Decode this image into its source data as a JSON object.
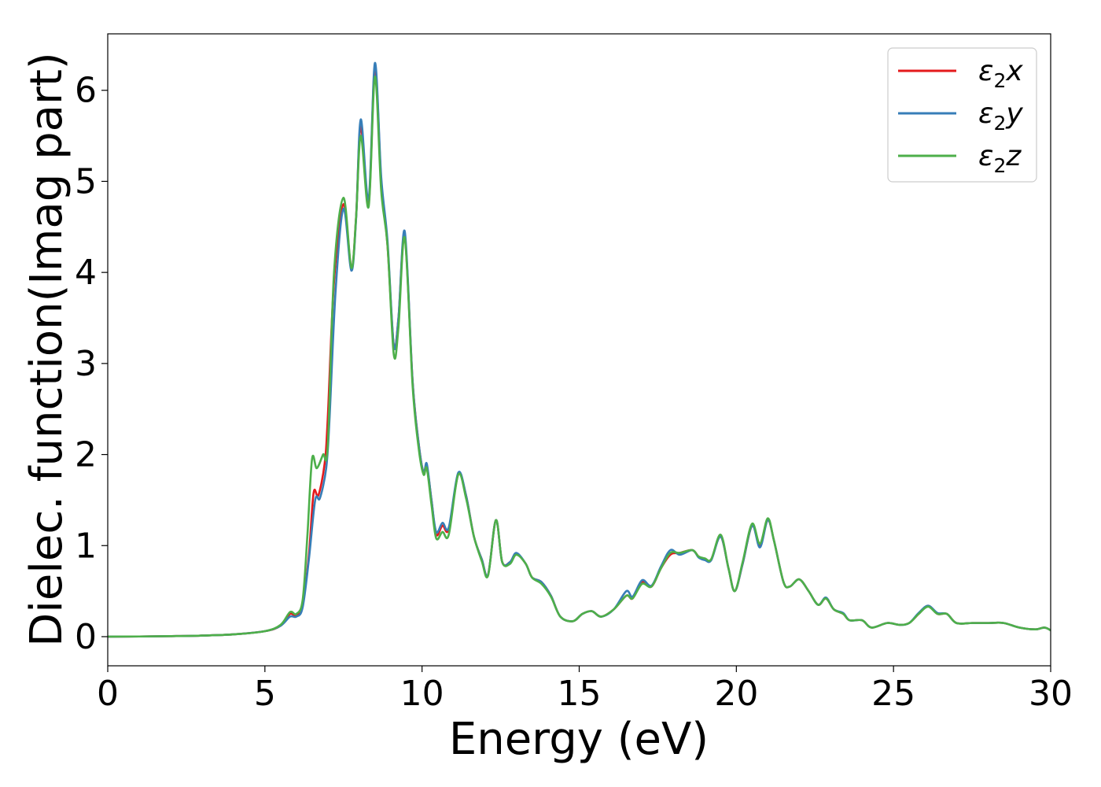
{
  "chart_data": {
    "type": "line",
    "title": "",
    "xlabel": "Energy (eV)",
    "ylabel": "Dielec. function(Imag part)",
    "xlim": [
      0,
      30
    ],
    "ylim": [
      -0.32,
      6.62
    ],
    "xticks": [
      0,
      5,
      10,
      15,
      20,
      25,
      30
    ],
    "yticks": [
      0,
      1,
      2,
      3,
      4,
      5,
      6
    ],
    "grid": false,
    "legend_position": "top-right",
    "series": [
      {
        "name": "ε₂x",
        "legend_main": "ε",
        "legend_sub": "2",
        "legend_tail": "x",
        "color": "#e41a1c",
        "points": [
          [
            0,
            0
          ],
          [
            1,
            0.002
          ],
          [
            2,
            0.006
          ],
          [
            3,
            0.012
          ],
          [
            4,
            0.025
          ],
          [
            5,
            0.06
          ],
          [
            5.5,
            0.12
          ],
          [
            5.8,
            0.25
          ],
          [
            6.0,
            0.23
          ],
          [
            6.2,
            0.35
          ],
          [
            6.4,
            0.9
          ],
          [
            6.55,
            1.58
          ],
          [
            6.7,
            1.55
          ],
          [
            6.9,
            1.9
          ],
          [
            7.0,
            2.4
          ],
          [
            7.2,
            3.9
          ],
          [
            7.5,
            4.75
          ],
          [
            7.75,
            4.05
          ],
          [
            7.9,
            4.6
          ],
          [
            8.05,
            5.6
          ],
          [
            8.3,
            4.75
          ],
          [
            8.5,
            6.25
          ],
          [
            8.7,
            5.0
          ],
          [
            8.9,
            4.3
          ],
          [
            9.1,
            3.2
          ],
          [
            9.25,
            3.5
          ],
          [
            9.45,
            4.4
          ],
          [
            9.7,
            2.8
          ],
          [
            9.9,
            2.1
          ],
          [
            10.05,
            1.8
          ],
          [
            10.15,
            1.88
          ],
          [
            10.3,
            1.5
          ],
          [
            10.45,
            1.12
          ],
          [
            10.65,
            1.22
          ],
          [
            10.85,
            1.18
          ],
          [
            11.15,
            1.78
          ],
          [
            11.4,
            1.55
          ],
          [
            11.65,
            1.1
          ],
          [
            11.9,
            0.85
          ],
          [
            12.1,
            0.68
          ],
          [
            12.35,
            1.28
          ],
          [
            12.55,
            0.82
          ],
          [
            12.8,
            0.82
          ],
          [
            13.0,
            0.91
          ],
          [
            13.3,
            0.8
          ],
          [
            13.5,
            0.65
          ],
          [
            13.8,
            0.6
          ],
          [
            14.1,
            0.45
          ],
          [
            14.4,
            0.22
          ],
          [
            14.8,
            0.17
          ],
          [
            15.1,
            0.25
          ],
          [
            15.4,
            0.28
          ],
          [
            15.7,
            0.22
          ],
          [
            16.1,
            0.3
          ],
          [
            16.5,
            0.45
          ],
          [
            16.7,
            0.42
          ],
          [
            17.0,
            0.6
          ],
          [
            17.3,
            0.55
          ],
          [
            17.6,
            0.75
          ],
          [
            17.9,
            0.9
          ],
          [
            18.2,
            0.92
          ],
          [
            18.6,
            0.95
          ],
          [
            18.8,
            0.88
          ],
          [
            19.0,
            0.85
          ],
          [
            19.2,
            0.85
          ],
          [
            19.5,
            1.1
          ],
          [
            19.75,
            0.75
          ],
          [
            19.95,
            0.5
          ],
          [
            20.2,
            0.8
          ],
          [
            20.5,
            1.22
          ],
          [
            20.75,
            1.0
          ],
          [
            21.0,
            1.28
          ],
          [
            21.2,
            1.05
          ],
          [
            21.5,
            0.6
          ],
          [
            21.7,
            0.55
          ],
          [
            22.0,
            0.63
          ],
          [
            22.3,
            0.5
          ],
          [
            22.6,
            0.35
          ],
          [
            22.85,
            0.42
          ],
          [
            23.1,
            0.3
          ],
          [
            23.4,
            0.25
          ],
          [
            23.6,
            0.18
          ],
          [
            24.0,
            0.18
          ],
          [
            24.3,
            0.1
          ],
          [
            24.8,
            0.15
          ],
          [
            25.2,
            0.13
          ],
          [
            25.5,
            0.15
          ],
          [
            25.8,
            0.25
          ],
          [
            26.1,
            0.34
          ],
          [
            26.4,
            0.25
          ],
          [
            26.7,
            0.25
          ],
          [
            27.0,
            0.15
          ],
          [
            27.5,
            0.15
          ],
          [
            28.0,
            0.15
          ],
          [
            28.5,
            0.15
          ],
          [
            29.0,
            0.1
          ],
          [
            29.5,
            0.08
          ],
          [
            29.8,
            0.1
          ],
          [
            30,
            0.07
          ]
        ]
      },
      {
        "name": "ε₂y",
        "legend_main": "ε",
        "legend_sub": "2",
        "legend_tail": "y",
        "color": "#377eb8",
        "points": [
          [
            0,
            0
          ],
          [
            1,
            0.002
          ],
          [
            2,
            0.006
          ],
          [
            3,
            0.012
          ],
          [
            4,
            0.025
          ],
          [
            5,
            0.06
          ],
          [
            5.5,
            0.12
          ],
          [
            5.8,
            0.22
          ],
          [
            6.0,
            0.22
          ],
          [
            6.2,
            0.32
          ],
          [
            6.4,
            0.85
          ],
          [
            6.6,
            1.5
          ],
          [
            6.75,
            1.52
          ],
          [
            6.95,
            1.85
          ],
          [
            7.05,
            2.35
          ],
          [
            7.25,
            3.8
          ],
          [
            7.5,
            4.7
          ],
          [
            7.75,
            4.02
          ],
          [
            7.9,
            4.58
          ],
          [
            8.05,
            5.68
          ],
          [
            8.3,
            4.8
          ],
          [
            8.5,
            6.3
          ],
          [
            8.7,
            5.05
          ],
          [
            8.9,
            4.35
          ],
          [
            9.1,
            3.2
          ],
          [
            9.25,
            3.5
          ],
          [
            9.45,
            4.45
          ],
          [
            9.7,
            2.8
          ],
          [
            9.9,
            2.1
          ],
          [
            10.05,
            1.8
          ],
          [
            10.15,
            1.9
          ],
          [
            10.3,
            1.5
          ],
          [
            10.45,
            1.15
          ],
          [
            10.65,
            1.25
          ],
          [
            10.85,
            1.2
          ],
          [
            11.15,
            1.8
          ],
          [
            11.4,
            1.55
          ],
          [
            11.65,
            1.1
          ],
          [
            11.9,
            0.85
          ],
          [
            12.1,
            0.68
          ],
          [
            12.35,
            1.28
          ],
          [
            12.55,
            0.82
          ],
          [
            12.8,
            0.82
          ],
          [
            13.0,
            0.92
          ],
          [
            13.3,
            0.8
          ],
          [
            13.5,
            0.65
          ],
          [
            13.8,
            0.6
          ],
          [
            14.1,
            0.45
          ],
          [
            14.4,
            0.22
          ],
          [
            14.8,
            0.17
          ],
          [
            15.1,
            0.25
          ],
          [
            15.4,
            0.28
          ],
          [
            15.7,
            0.22
          ],
          [
            16.1,
            0.3
          ],
          [
            16.5,
            0.5
          ],
          [
            16.7,
            0.44
          ],
          [
            17.0,
            0.62
          ],
          [
            17.3,
            0.56
          ],
          [
            17.6,
            0.77
          ],
          [
            17.9,
            0.95
          ],
          [
            18.2,
            0.9
          ],
          [
            18.6,
            0.95
          ],
          [
            18.8,
            0.87
          ],
          [
            19.0,
            0.84
          ],
          [
            19.2,
            0.84
          ],
          [
            19.5,
            1.1
          ],
          [
            19.75,
            0.75
          ],
          [
            19.95,
            0.5
          ],
          [
            20.2,
            0.8
          ],
          [
            20.5,
            1.22
          ],
          [
            20.75,
            0.98
          ],
          [
            21.0,
            1.28
          ],
          [
            21.2,
            1.05
          ],
          [
            21.5,
            0.6
          ],
          [
            21.7,
            0.55
          ],
          [
            22.0,
            0.63
          ],
          [
            22.3,
            0.5
          ],
          [
            22.6,
            0.35
          ],
          [
            22.85,
            0.43
          ],
          [
            23.1,
            0.3
          ],
          [
            23.4,
            0.26
          ],
          [
            23.6,
            0.18
          ],
          [
            24.0,
            0.18
          ],
          [
            24.3,
            0.1
          ],
          [
            24.8,
            0.15
          ],
          [
            25.2,
            0.13
          ],
          [
            25.5,
            0.15
          ],
          [
            25.8,
            0.26
          ],
          [
            26.1,
            0.34
          ],
          [
            26.4,
            0.26
          ],
          [
            26.7,
            0.25
          ],
          [
            27.0,
            0.15
          ],
          [
            27.5,
            0.15
          ],
          [
            28.0,
            0.15
          ],
          [
            28.5,
            0.15
          ],
          [
            29.0,
            0.1
          ],
          [
            29.5,
            0.08
          ],
          [
            29.8,
            0.1
          ],
          [
            30,
            0.07
          ]
        ]
      },
      {
        "name": "ε₂z",
        "legend_main": "ε",
        "legend_sub": "2",
        "legend_tail": "z",
        "color": "#4daf4a",
        "points": [
          [
            0,
            0
          ],
          [
            1,
            0.002
          ],
          [
            2,
            0.006
          ],
          [
            3,
            0.012
          ],
          [
            4,
            0.025
          ],
          [
            5,
            0.06
          ],
          [
            5.5,
            0.13
          ],
          [
            5.8,
            0.27
          ],
          [
            6.0,
            0.25
          ],
          [
            6.2,
            0.4
          ],
          [
            6.35,
            1.1
          ],
          [
            6.5,
            1.95
          ],
          [
            6.65,
            1.85
          ],
          [
            6.85,
            2.0
          ],
          [
            7.0,
            2.1
          ],
          [
            7.2,
            4.0
          ],
          [
            7.5,
            4.82
          ],
          [
            7.75,
            4.05
          ],
          [
            7.9,
            4.6
          ],
          [
            8.05,
            5.5
          ],
          [
            8.3,
            4.72
          ],
          [
            8.5,
            6.15
          ],
          [
            8.7,
            4.9
          ],
          [
            8.9,
            4.3
          ],
          [
            9.1,
            3.1
          ],
          [
            9.25,
            3.4
          ],
          [
            9.45,
            4.38
          ],
          [
            9.7,
            2.75
          ],
          [
            9.9,
            2.05
          ],
          [
            10.05,
            1.78
          ],
          [
            10.15,
            1.85
          ],
          [
            10.3,
            1.45
          ],
          [
            10.45,
            1.08
          ],
          [
            10.65,
            1.15
          ],
          [
            10.85,
            1.12
          ],
          [
            11.15,
            1.78
          ],
          [
            11.4,
            1.52
          ],
          [
            11.65,
            1.1
          ],
          [
            11.9,
            0.83
          ],
          [
            12.1,
            0.67
          ],
          [
            12.35,
            1.28
          ],
          [
            12.55,
            0.82
          ],
          [
            12.8,
            0.8
          ],
          [
            13.0,
            0.9
          ],
          [
            13.3,
            0.8
          ],
          [
            13.5,
            0.65
          ],
          [
            13.8,
            0.58
          ],
          [
            14.1,
            0.44
          ],
          [
            14.4,
            0.22
          ],
          [
            14.8,
            0.17
          ],
          [
            15.1,
            0.25
          ],
          [
            15.4,
            0.28
          ],
          [
            15.7,
            0.22
          ],
          [
            16.1,
            0.3
          ],
          [
            16.5,
            0.45
          ],
          [
            16.7,
            0.42
          ],
          [
            17.0,
            0.58
          ],
          [
            17.3,
            0.55
          ],
          [
            17.6,
            0.75
          ],
          [
            17.9,
            0.92
          ],
          [
            18.2,
            0.92
          ],
          [
            18.6,
            0.95
          ],
          [
            18.8,
            0.88
          ],
          [
            19.0,
            0.86
          ],
          [
            19.2,
            0.85
          ],
          [
            19.5,
            1.12
          ],
          [
            19.75,
            0.75
          ],
          [
            19.95,
            0.5
          ],
          [
            20.2,
            0.82
          ],
          [
            20.5,
            1.24
          ],
          [
            20.75,
            1.02
          ],
          [
            21.0,
            1.3
          ],
          [
            21.2,
            1.05
          ],
          [
            21.5,
            0.6
          ],
          [
            21.7,
            0.55
          ],
          [
            22.0,
            0.63
          ],
          [
            22.3,
            0.5
          ],
          [
            22.6,
            0.35
          ],
          [
            22.85,
            0.42
          ],
          [
            23.1,
            0.3
          ],
          [
            23.4,
            0.25
          ],
          [
            23.6,
            0.18
          ],
          [
            24.0,
            0.18
          ],
          [
            24.3,
            0.1
          ],
          [
            24.8,
            0.15
          ],
          [
            25.2,
            0.13
          ],
          [
            25.5,
            0.15
          ],
          [
            25.8,
            0.25
          ],
          [
            26.1,
            0.33
          ],
          [
            26.4,
            0.25
          ],
          [
            26.7,
            0.25
          ],
          [
            27.0,
            0.15
          ],
          [
            27.5,
            0.15
          ],
          [
            28.0,
            0.15
          ],
          [
            28.5,
            0.15
          ],
          [
            29.0,
            0.1
          ],
          [
            29.5,
            0.08
          ],
          [
            29.8,
            0.1
          ],
          [
            30,
            0.07
          ]
        ]
      }
    ]
  }
}
